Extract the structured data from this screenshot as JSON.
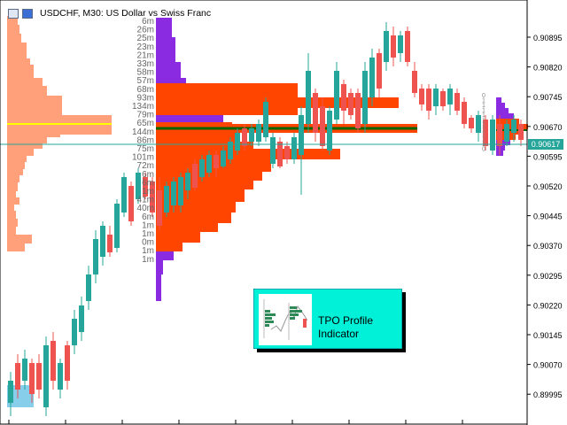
{
  "window": {
    "title": "USDCHF, M30:  US Dollar vs Swiss Franc",
    "icons": [
      "window-menu-icon",
      "window-tiles-icon"
    ]
  },
  "price_axis": {
    "labels": [
      "0.90895",
      "0.90820",
      "0.90745",
      "0.90670",
      "0.90595",
      "0.90520",
      "0.90445",
      "0.90370",
      "0.90295",
      "0.90220",
      "0.90145",
      "0.90070",
      "0.89995"
    ],
    "current_price": "0.90617"
  },
  "tpo_labels": [
    "6m",
    "26m",
    "25m",
    "23m",
    "21m",
    "33m",
    "58m",
    "57m",
    "68m",
    "93m",
    "134m",
    "79m",
    "65m",
    "144m",
    "86m",
    "75m",
    "101m",
    "72m",
    "6m",
    "6m",
    "1m",
    "41m",
    "40m",
    "6m",
    "1m",
    "1m",
    "0m",
    "1m",
    "1m"
  ],
  "right_profile_labels": [
    "0",
    "1",
    "1",
    "1",
    "1",
    "1",
    "1",
    "1",
    "1",
    "1",
    "1",
    "0"
  ],
  "banner": {
    "line1": "TPO Profile",
    "line2": "Indicator"
  },
  "colors": {
    "bull": "#26a69a",
    "bear": "#ef5350",
    "profile_orange": "#ff4500",
    "profile_purple": "#8a2be2",
    "left_profile": "#ffa07a",
    "value_area_blue": "#87ceeb",
    "poc_yellow": "#ffff00",
    "poc_green": "#006400",
    "banner": "#00f0d8"
  }
}
